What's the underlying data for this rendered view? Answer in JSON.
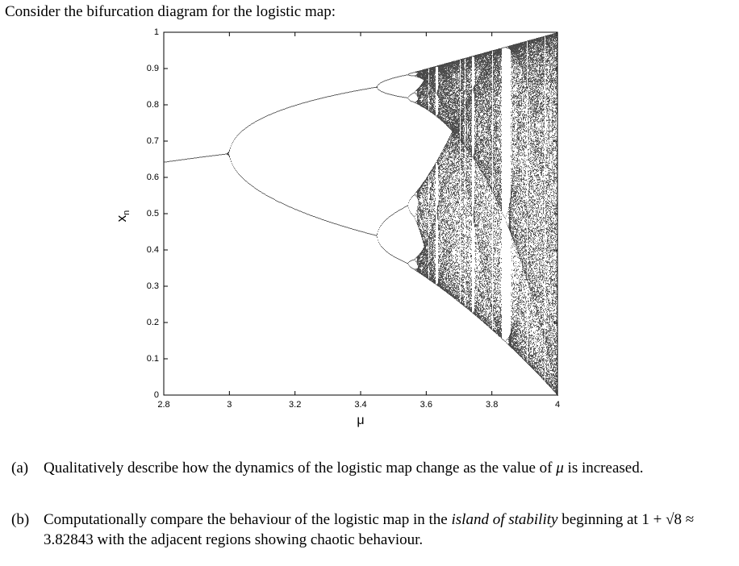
{
  "intro": "Consider the bifurcation diagram for the logistic map:",
  "chart_data": {
    "type": "bifurcation",
    "xlabel": "μ",
    "ylabel": "x",
    "ylabel_sub": "n",
    "xlim": [
      2.8,
      4
    ],
    "xticks": [
      2.8,
      3,
      3.2,
      3.4,
      3.6,
      3.8,
      4
    ],
    "ylim": [
      0,
      1
    ],
    "yticks": [
      0,
      0.1,
      0.2,
      0.3,
      0.4,
      0.5,
      0.6,
      0.7,
      0.8,
      0.9,
      1
    ],
    "color": "#000000"
  },
  "questions": [
    {
      "label": "(a)",
      "text": "Qualitatively describe how the dynamics of the logistic map change as the value of",
      "var": "μ",
      "text2": "is increased."
    },
    {
      "label": "(b)",
      "text": "Computationally compare the behaviour of the logistic map in the",
      "emph": "island of stability",
      "text2": "beginning at",
      "math": "1 + √8 ≈ 3.82843",
      "text3": "with the adjacent regions showing chaotic behaviour."
    }
  ]
}
